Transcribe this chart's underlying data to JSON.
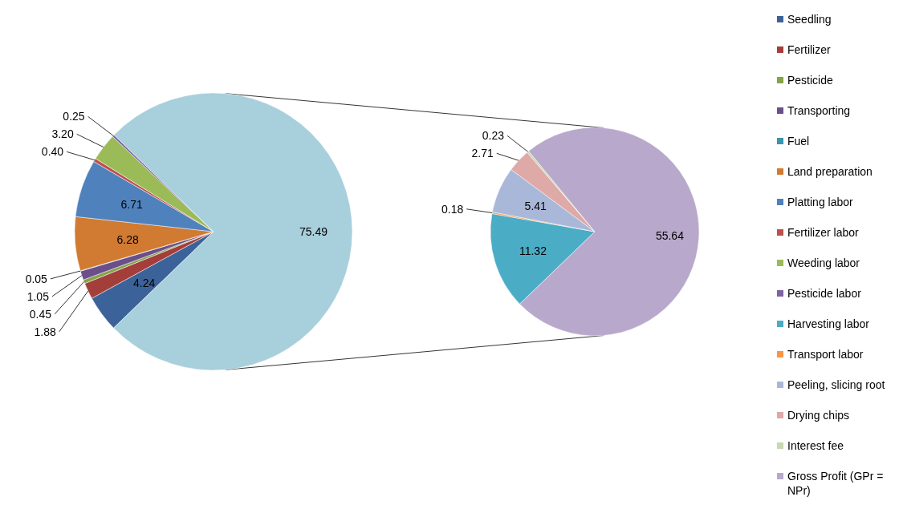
{
  "chart_data": [
    {
      "type": "pie",
      "categories": [
        "Seedling",
        "Fertilizer",
        "Pesticide",
        "Transporting",
        "Fuel",
        "Land preparation",
        "Platting labor",
        "Fertilizer labor",
        "Weeding labor",
        "Pesticide labor",
        null
      ],
      "values": [
        4.24,
        1.88,
        0.45,
        1.05,
        0.05,
        6.28,
        6.71,
        0.4,
        3.2,
        0.25,
        75.49
      ],
      "colors": [
        "#3c6399",
        "#a33e3b",
        "#84a447",
        "#6a4f8a",
        "#3a95ae",
        "#d17a31",
        "#4f81bd",
        "#c0504d",
        "#9bbb59",
        "#8064a2",
        "#a8cfdc"
      ],
      "value_labels": [
        "4.24",
        "1.88",
        "0.45",
        "1.05",
        "0.05",
        "6.28",
        "6.71",
        "0.40",
        "3.20",
        "0.25",
        "75.49"
      ],
      "legend": "right"
    },
    {
      "type": "pie",
      "categories": [
        "Harvesting labor",
        "Transport labor",
        "Peeling, slicing root",
        "Drying chips",
        "Interest fee",
        "Gross Profit (GPr = NPr)"
      ],
      "values": [
        11.32,
        0.18,
        5.41,
        2.71,
        0.23,
        55.64
      ],
      "colors": [
        "#4bacc6",
        "#f79646",
        "#a9b8d9",
        "#dea9a7",
        "#c6d9b0",
        "#b8a9cc"
      ],
      "value_labels": [
        "11.32",
        "0.18",
        "5.41",
        "2.71",
        "0.23",
        "55.64"
      ],
      "legend": "right"
    }
  ]
}
